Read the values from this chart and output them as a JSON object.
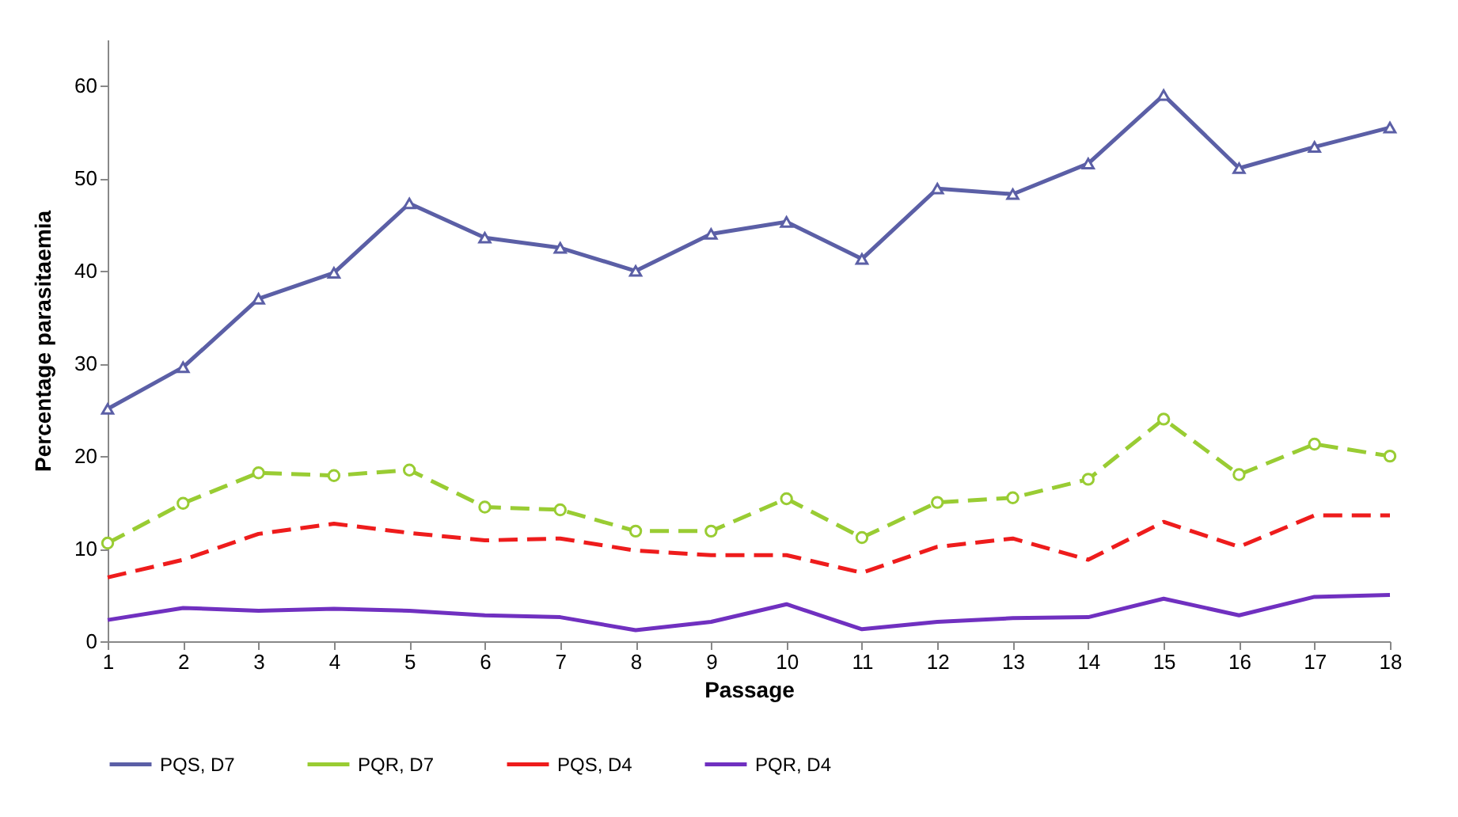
{
  "chart_data": {
    "type": "line",
    "xlabel": "Passage",
    "ylabel": "Percentage parasitaemia",
    "x": [
      1,
      2,
      3,
      4,
      5,
      6,
      7,
      8,
      9,
      10,
      11,
      12,
      13,
      14,
      15,
      16,
      17,
      18
    ],
    "xlim": [
      1,
      18
    ],
    "xticks": [
      1,
      2,
      3,
      4,
      5,
      6,
      7,
      8,
      9,
      10,
      11,
      12,
      13,
      14,
      15,
      16,
      17,
      18
    ],
    "ylim": [
      0,
      65
    ],
    "yticks": [
      0,
      10,
      20,
      30,
      40,
      50,
      60
    ],
    "grid": false,
    "legend": "bottom",
    "series": [
      {
        "name": "PQS, D7",
        "color": "#5b5fa6",
        "marker": "triangle",
        "line_style": "solid",
        "values": [
          25.1,
          29.6,
          37,
          39.8,
          47.3,
          43.6,
          42.5,
          40,
          44,
          45.3,
          41.3,
          48.9,
          48.3,
          51.6,
          59,
          51.1,
          53.4,
          55.5
        ]
      },
      {
        "name": "PQR, D7",
        "color": "#99cc33",
        "marker": "circle",
        "line_style": "dashed",
        "values": [
          10.6,
          14.9,
          18.2,
          17.9,
          18.5,
          14.5,
          14.2,
          11.9,
          11.9,
          15.4,
          11.2,
          15,
          15.5,
          17.5,
          24,
          18,
          21.3,
          20
        ]
      },
      {
        "name": "PQS, D4",
        "color": "#ee1c1c",
        "marker": "none",
        "line_style": "dashed",
        "values": [
          6.9,
          8.8,
          11.6,
          12.7,
          11.7,
          10.9,
          11.1,
          9.8,
          9.3,
          9.3,
          7.4,
          10.2,
          11.1,
          8.8,
          12.9,
          10.2,
          13.6,
          13.6
        ]
      },
      {
        "name": "PQR, D4",
        "color": "#7030c0",
        "marker": "none",
        "line_style": "solid",
        "values": [
          2.3,
          3.6,
          3.3,
          3.5,
          3.3,
          2.8,
          2.6,
          1.2,
          2.1,
          4,
          1.3,
          2.1,
          2.5,
          2.6,
          4.6,
          2.8,
          4.8,
          5
        ]
      }
    ]
  }
}
